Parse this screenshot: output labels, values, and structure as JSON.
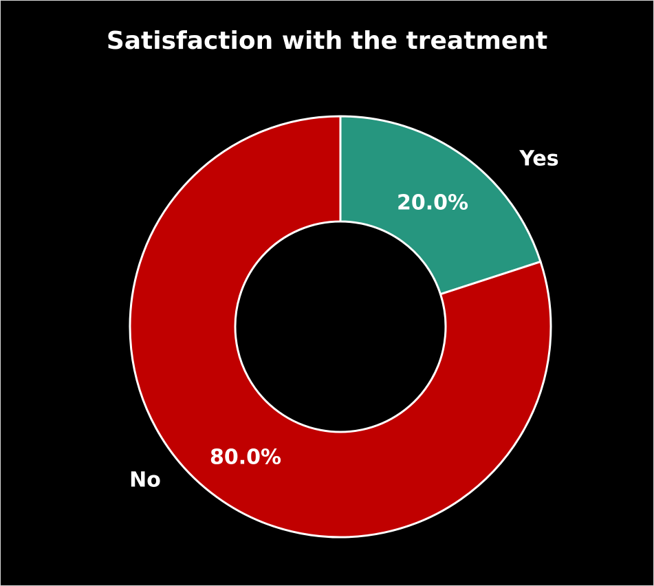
{
  "chart_data": {
    "type": "pie",
    "style": "donut",
    "title": "Satisfaction with the treatment",
    "categories": [
      "Yes",
      "No"
    ],
    "values": [
      20.0,
      80.0
    ],
    "value_labels": [
      "20.0%",
      "80.0%"
    ],
    "colors": [
      "#26967f",
      "#c00000"
    ],
    "background": "#000000",
    "legend": "none"
  }
}
